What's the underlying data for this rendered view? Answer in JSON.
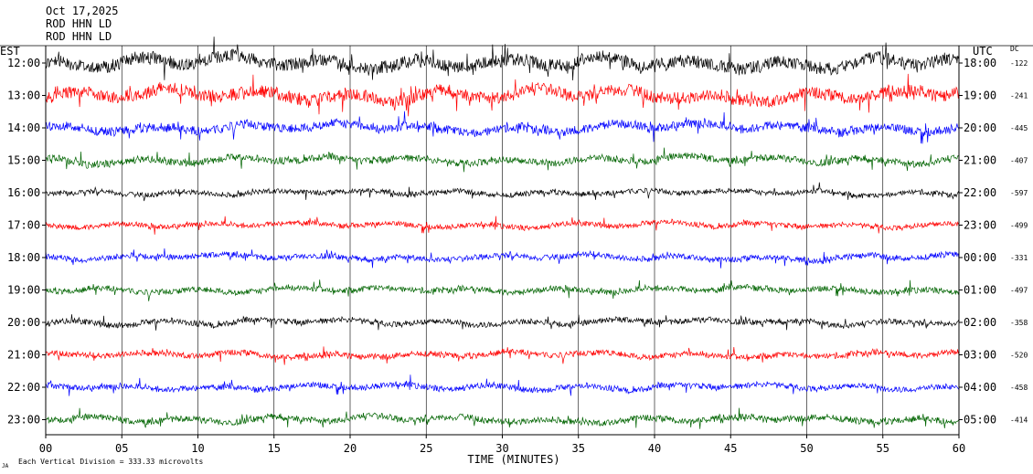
{
  "chart_data": {
    "type": "line",
    "title_lines": [
      "Oct 17,2025",
      "ROD HHN LD",
      "ROD HHN LD"
    ],
    "left_axis_label": "EST",
    "right_axis_label": "UTC",
    "dc_label": "DC",
    "xlabel": "TIME (MINUTES)",
    "xlim": [
      0,
      60
    ],
    "x_ticks": [
      "00",
      "05",
      "10",
      "15",
      "20",
      "25",
      "30",
      "35",
      "40",
      "45",
      "50",
      "55",
      "60"
    ],
    "footer_mark": "JA",
    "scale_note": "Each Vertical Division =  333.33 microvolts",
    "colors": [
      "#000000",
      "#ff0000",
      "#0000ff",
      "#006400"
    ],
    "rows": [
      {
        "est": "12:00",
        "utc": "18:00",
        "dc": "-122",
        "amplitude": 1.0
      },
      {
        "est": "13:00",
        "utc": "19:00",
        "dc": "-241",
        "amplitude": 0.95
      },
      {
        "est": "14:00",
        "utc": "20:00",
        "dc": "-445",
        "amplitude": 0.7
      },
      {
        "est": "15:00",
        "utc": "21:00",
        "dc": "-407",
        "amplitude": 0.55
      },
      {
        "est": "16:00",
        "utc": "22:00",
        "dc": "-597",
        "amplitude": 0.4
      },
      {
        "est": "17:00",
        "utc": "23:00",
        "dc": "-499",
        "amplitude": 0.4
      },
      {
        "est": "18:00",
        "utc": "00:00",
        "dc": "-331",
        "amplitude": 0.45
      },
      {
        "est": "19:00",
        "utc": "01:00",
        "dc": "-497",
        "amplitude": 0.45
      },
      {
        "est": "20:00",
        "utc": "02:00",
        "dc": "-358",
        "amplitude": 0.45
      },
      {
        "est": "21:00",
        "utc": "03:00",
        "dc": "-520",
        "amplitude": 0.45
      },
      {
        "est": "22:00",
        "utc": "04:00",
        "dc": "-458",
        "amplitude": 0.45
      },
      {
        "est": "23:00",
        "utc": "05:00",
        "dc": "-414",
        "amplitude": 0.5
      }
    ]
  }
}
